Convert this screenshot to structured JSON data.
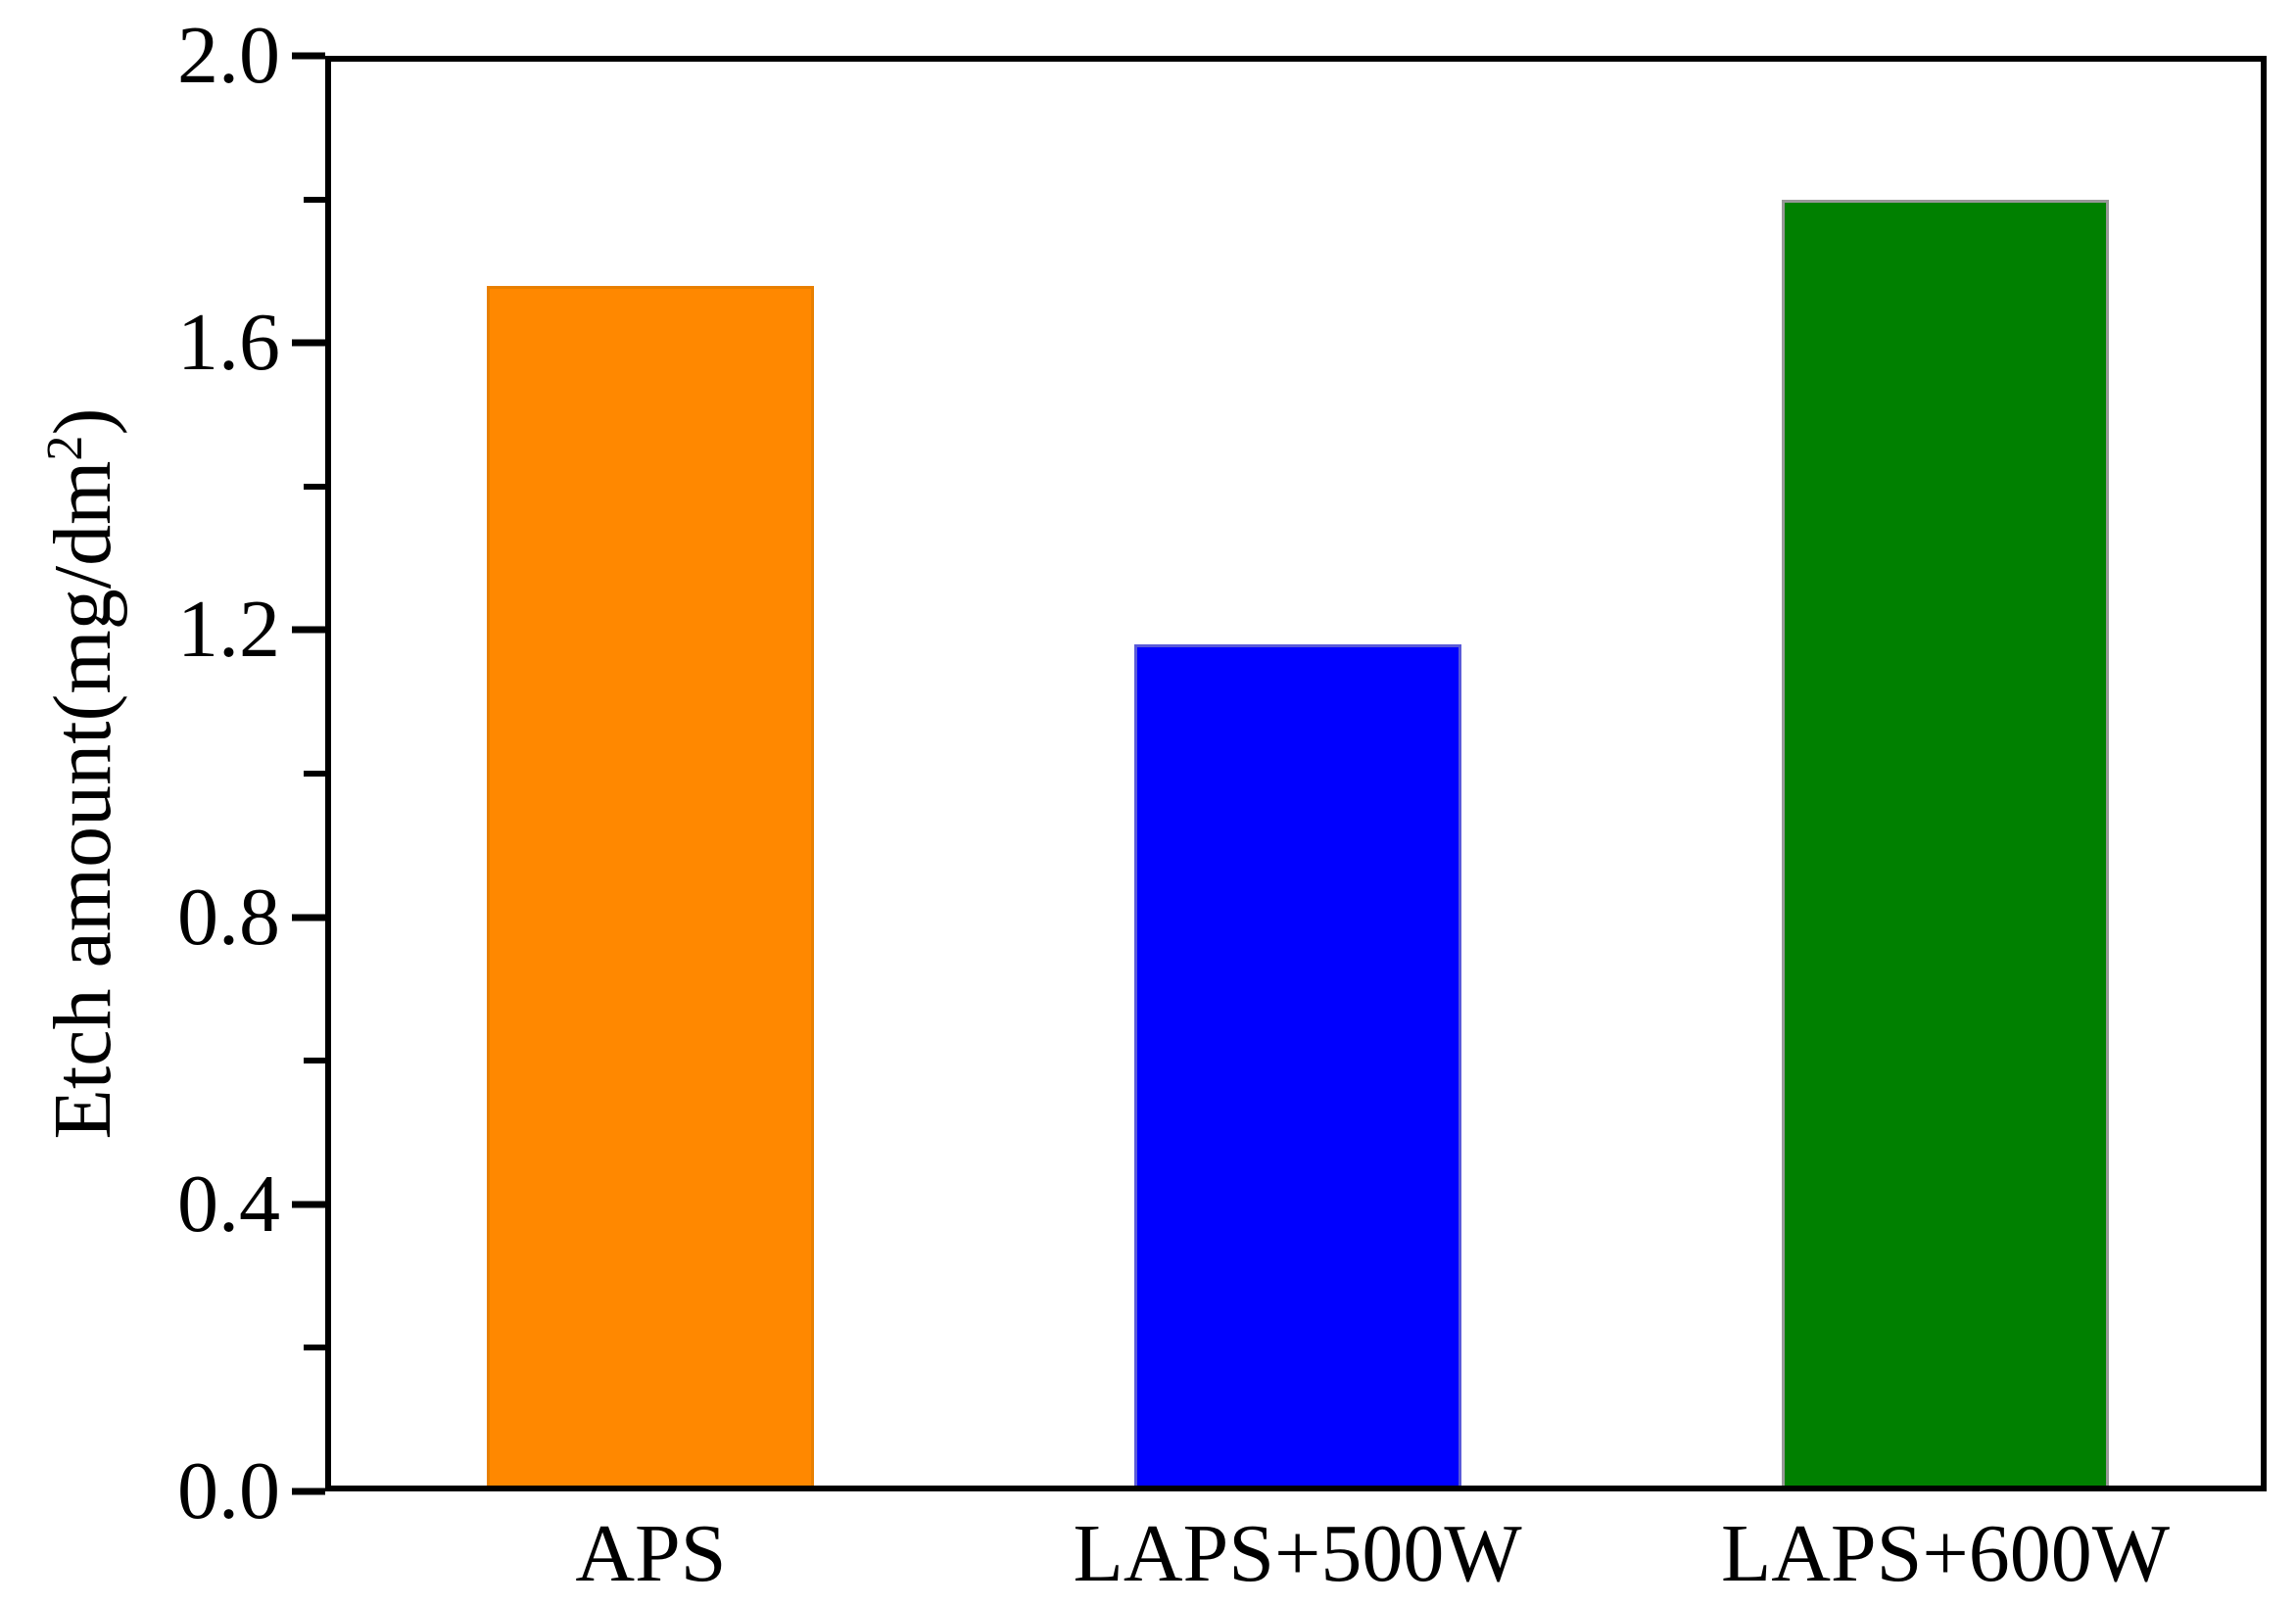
{
  "figure": {
    "background": "#ffffff",
    "axis_color": "#000000",
    "text_color": "#000000"
  },
  "chart_data": {
    "type": "bar",
    "title": "",
    "xlabel": "",
    "ylabel": "Etch amount(mg/dm2)",
    "ylabel_prefix": "Etch amount(mg/dm",
    "ylabel_sup": "2",
    "ylabel_suffix": ")",
    "categories": [
      "APS",
      "LAPS+500W",
      "LAPS+600W"
    ],
    "values": [
      1.68,
      1.18,
      1.8
    ],
    "bar_colors": [
      "#ff8800",
      "#0000ff",
      "#008000"
    ],
    "bar_border_colors": [
      "#e87f00",
      "#5a5ad8",
      "#989898"
    ],
    "ylim": [
      0,
      2.0
    ],
    "yticks_major": [
      0.0,
      0.4,
      0.8,
      1.2,
      1.6,
      2.0
    ],
    "ytick_labels": [
      "0.0",
      "0.4",
      "0.8",
      "1.2",
      "1.6",
      "2.0"
    ],
    "yticks_minor": [
      0.2,
      0.6,
      1.0,
      1.4,
      1.8
    ],
    "grid": "off",
    "legend": "none",
    "bar_width_frac": 0.1685,
    "bar_centers_frac": [
      0.1677,
      0.5008,
      0.8345
    ]
  }
}
